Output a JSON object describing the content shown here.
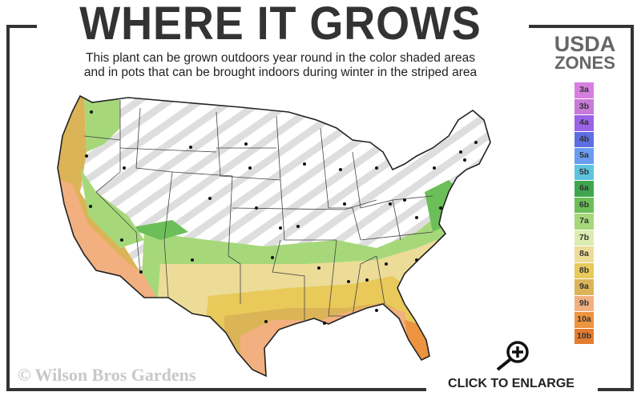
{
  "title": "WHERE IT GROWS",
  "subtitle_line1": "This plant can be grown outdoors year round in the color shaded areas",
  "subtitle_line2": "and in pots that can be brought indoors during winter in the striped area",
  "legend": {
    "title_line1": "USDA",
    "title_line2": "ZONES",
    "zones": [
      {
        "label": "3a",
        "color": "#d77fe0"
      },
      {
        "label": "3b",
        "color": "#c77ad8"
      },
      {
        "label": "4a",
        "color": "#9b63e6"
      },
      {
        "label": "4b",
        "color": "#5d6fe0"
      },
      {
        "label": "5a",
        "color": "#6b9cf0"
      },
      {
        "label": "5b",
        "color": "#5ec4e0"
      },
      {
        "label": "6a",
        "color": "#3fa64f"
      },
      {
        "label": "6b",
        "color": "#6cbf58"
      },
      {
        "label": "7a",
        "color": "#a6d87a"
      },
      {
        "label": "7b",
        "color": "#dcebb0"
      },
      {
        "label": "8a",
        "color": "#ecdc98"
      },
      {
        "label": "8b",
        "color": "#e8c95a"
      },
      {
        "label": "9a",
        "color": "#dcb458"
      },
      {
        "label": "9b",
        "color": "#f2b080"
      },
      {
        "label": "10a",
        "color": "#ec9440"
      },
      {
        "label": "10b",
        "color": "#e47c30"
      }
    ]
  },
  "copyright": "© Wilson Bros Gardens",
  "enlarge_label": "CLICK TO ENLARGE",
  "icons": {
    "enlarge": "magnifier-plus-icon"
  }
}
